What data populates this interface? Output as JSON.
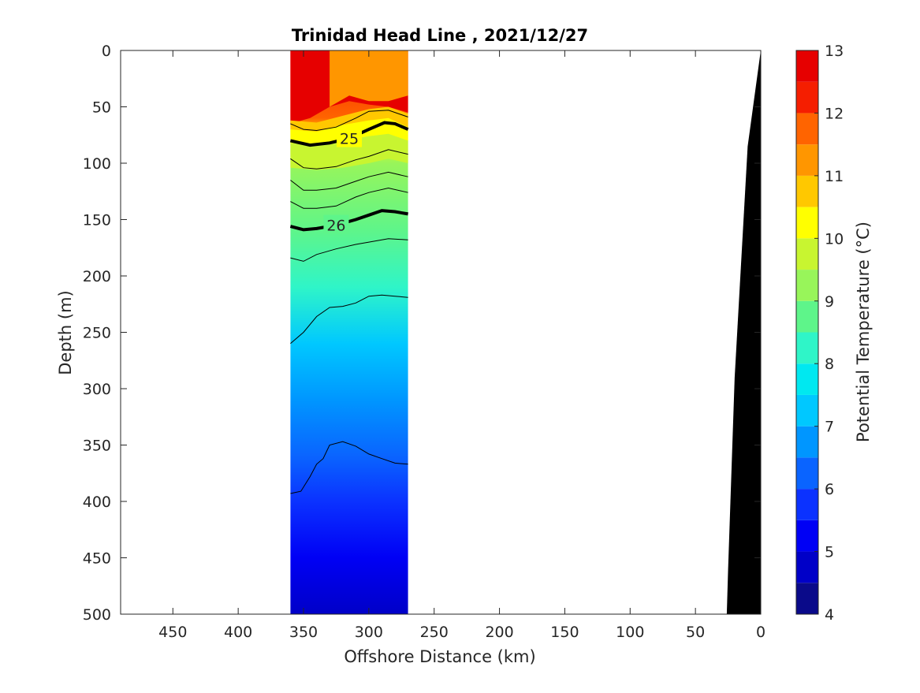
{
  "chart_data": {
    "type": "contour",
    "title": "Trinidad Head Line , 2021/12/27",
    "xlabel": "Offshore Distance (km)",
    "ylabel": "Depth (m)",
    "xlim": [
      490,
      0
    ],
    "ylim": [
      0,
      500
    ],
    "x_reversed": true,
    "y_reversed": true,
    "xticks": [
      450,
      400,
      350,
      300,
      250,
      200,
      150,
      100,
      50,
      0
    ],
    "yticks": [
      0,
      50,
      100,
      150,
      200,
      250,
      300,
      350,
      400,
      450,
      500
    ],
    "data_x_range": [
      360,
      270
    ],
    "colorbar": {
      "label": "Potential Temperature (°C)",
      "min": 4,
      "max": 13,
      "step": 0.5,
      "ticks": [
        4,
        5,
        6,
        7,
        8,
        9,
        10,
        11,
        12,
        13
      ],
      "colors": [
        "#0a0a8a",
        "#0000c8",
        "#0000f5",
        "#0b32ff",
        "#0a64ff",
        "#0096ff",
        "#00c8ff",
        "#00e8f0",
        "#2ff5c8",
        "#5ef58a",
        "#98f55a",
        "#c8f530",
        "#ffff00",
        "#ffc800",
        "#ff9600",
        "#ff6400",
        "#f51e00",
        "#e60000"
      ]
    },
    "temperature_bands": [
      {
        "t": 12.5,
        "x": [
          360,
          340,
          325,
          315,
          300,
          285,
          270,
          270,
          285,
          300,
          315,
          330,
          345,
          360
        ],
        "y": [
          0,
          0,
          0,
          0,
          0,
          0,
          0,
          55,
          50,
          48,
          45,
          50,
          60,
          65
        ]
      },
      {
        "t": 11.0,
        "x": [
          330,
          315,
          300,
          285,
          270,
          270,
          285,
          300,
          315,
          330
        ],
        "y": [
          0,
          0,
          0,
          0,
          0,
          40,
          45,
          45,
          40,
          50
        ]
      },
      {
        "t": 10.5,
        "x": [
          360,
          340,
          320,
          300,
          285,
          270,
          270,
          285,
          300,
          320,
          340,
          360
        ],
        "y": [
          62,
          64,
          58,
          52,
          50,
          56,
          68,
          62,
          63,
          66,
          72,
          70
        ]
      },
      {
        "t": 10.0,
        "x": [
          360,
          340,
          320,
          300,
          285,
          270,
          270,
          285,
          300,
          320,
          340,
          360
        ],
        "y": [
          70,
          72,
          66,
          62,
          60,
          68,
          80,
          74,
          76,
          80,
          84,
          82
        ]
      },
      {
        "t": 9.5,
        "x": [
          360,
          340,
          320,
          300,
          285,
          270,
          270,
          285,
          300,
          320,
          340,
          360
        ],
        "y": [
          82,
          84,
          80,
          76,
          74,
          80,
          100,
          96,
          100,
          104,
          106,
          104
        ]
      }
    ],
    "isopycnals": [
      {
        "label": "25",
        "bold": true,
        "x": [
          360,
          345,
          330,
          315,
          300,
          288,
          280,
          270
        ],
        "y": [
          80,
          84,
          82,
          78,
          70,
          64,
          65,
          70
        ]
      },
      {
        "label": "26",
        "bold": true,
        "x": [
          360,
          350,
          340,
          325,
          310,
          300,
          290,
          280,
          270
        ],
        "y": [
          156,
          159,
          158,
          155,
          150,
          146,
          142,
          143,
          145
        ]
      },
      {
        "label": "",
        "bold": false,
        "x": [
          360,
          350,
          340,
          325,
          310,
          300,
          285,
          270
        ],
        "y": [
          65,
          70,
          71,
          68,
          60,
          54,
          53,
          59
        ]
      },
      {
        "label": "",
        "bold": false,
        "x": [
          360,
          350,
          340,
          325,
          310,
          300,
          285,
          270
        ],
        "y": [
          96,
          104,
          105,
          103,
          97,
          94,
          88,
          92
        ]
      },
      {
        "label": "",
        "bold": false,
        "x": [
          360,
          350,
          340,
          325,
          310,
          300,
          285,
          270
        ],
        "y": [
          115,
          124,
          124,
          122,
          116,
          112,
          108,
          112
        ]
      },
      {
        "label": "",
        "bold": false,
        "x": [
          360,
          350,
          340,
          325,
          310,
          300,
          285,
          270
        ],
        "y": [
          134,
          140,
          140,
          138,
          130,
          126,
          122,
          126
        ]
      },
      {
        "label": "",
        "bold": false,
        "x": [
          360,
          350,
          340,
          325,
          310,
          300,
          285,
          270
        ],
        "y": [
          184,
          187,
          181,
          176,
          172,
          170,
          167,
          168
        ]
      },
      {
        "label": "",
        "bold": false,
        "x": [
          360,
          350,
          340,
          330,
          320,
          310,
          300,
          290,
          280,
          270
        ],
        "y": [
          260,
          250,
          236,
          228,
          227,
          224,
          218,
          217,
          218,
          219
        ]
      },
      {
        "label": "",
        "bold": false,
        "x": [
          360,
          352,
          345,
          340,
          335,
          330,
          320,
          310,
          300,
          290,
          280,
          270
        ],
        "y": [
          393,
          391,
          378,
          367,
          362,
          350,
          347,
          351,
          358,
          362,
          366,
          367
        ]
      }
    ],
    "bathymetry": {
      "label": "",
      "x": [
        0,
        10,
        20,
        25,
        26,
        0
      ],
      "depth": [
        0,
        85,
        290,
        460,
        500,
        500
      ]
    }
  }
}
